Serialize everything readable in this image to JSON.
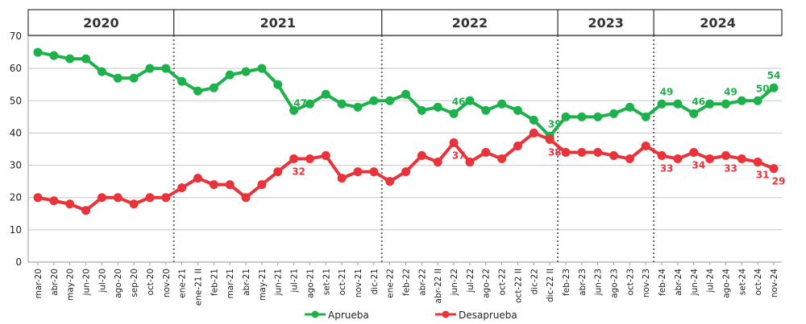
{
  "chart_data": {
    "type": "line",
    "title": "",
    "xlabel": "",
    "ylabel": "",
    "ylim": [
      0,
      70
    ],
    "yticks": [
      0,
      10,
      20,
      30,
      40,
      50,
      60,
      70
    ],
    "grid": true,
    "legend_position": "bottom",
    "year_groups": [
      {
        "label": "2020",
        "count": 9
      },
      {
        "label": "2021",
        "count": 13
      },
      {
        "label": "2022",
        "count": 11
      },
      {
        "label": "2023",
        "count": 6
      },
      {
        "label": "2024",
        "count": 8
      }
    ],
    "categories": [
      "mar-20",
      "abr-20",
      "may-20",
      "jun-20",
      "jul-20",
      "ago-20",
      "sep-20",
      "oct-20",
      "nov-20",
      "ene-21",
      "ene-21 II",
      "feb-21",
      "mar-21",
      "abr-21",
      "may-21",
      "jun-21",
      "jul-21",
      "ago-21",
      "set-21",
      "oct-21",
      "nov-21",
      "dic-21",
      "ene-22",
      "feb-22",
      "abr-22",
      "abr-22 II",
      "jun-22",
      "jul-22",
      "ago-22",
      "oct-22",
      "oct-22 II",
      "dic-22",
      "dic-22 II",
      "feb-23",
      "abr-23",
      "jun-23",
      "ago-23",
      "oct-23",
      "nov-23",
      "feb-24",
      "abr-24",
      "jun-24",
      "jul-24",
      "ago-24",
      "set-24",
      "oct-24",
      "nov-24"
    ],
    "series": [
      {
        "name": "Aprueba",
        "color": "#1db04b",
        "values": [
          65,
          64,
          63,
          63,
          59,
          57,
          57,
          60,
          60,
          56,
          53,
          54,
          58,
          59,
          60,
          55,
          47,
          49,
          52,
          49,
          48,
          50,
          50,
          52,
          47,
          48,
          46,
          50,
          47,
          49,
          47,
          44,
          39,
          45,
          45,
          45,
          46,
          48,
          45,
          49,
          49,
          46,
          49,
          49,
          50,
          50,
          54
        ],
        "labels": [
          {
            "category": "jul-21",
            "text": "47"
          },
          {
            "category": "jun-22",
            "text": "46"
          },
          {
            "category": "dic-22 II",
            "text": "39"
          },
          {
            "category": "feb-24",
            "text": "49"
          },
          {
            "category": "jun-24",
            "text": "46"
          },
          {
            "category": "ago-24",
            "text": "49"
          },
          {
            "category": "oct-24",
            "text": "50"
          },
          {
            "category": "nov-24",
            "text": "54"
          }
        ]
      },
      {
        "name": "Desaprueba",
        "color": "#e8333a",
        "values": [
          20,
          19,
          18,
          16,
          20,
          20,
          18,
          20,
          20,
          23,
          26,
          24,
          24,
          20,
          24,
          28,
          32,
          32,
          33,
          26,
          28,
          28,
          25,
          28,
          33,
          31,
          37,
          31,
          34,
          32,
          36,
          40,
          38,
          34,
          34,
          34,
          33,
          32,
          36,
          33,
          32,
          34,
          32,
          33,
          32,
          31,
          29
        ],
        "labels": [
          {
            "category": "jul-21",
            "text": "32"
          },
          {
            "category": "jun-22",
            "text": "37"
          },
          {
            "category": "dic-22 II",
            "text": "38"
          },
          {
            "category": "feb-24",
            "text": "33"
          },
          {
            "category": "jun-24",
            "text": "34"
          },
          {
            "category": "ago-24",
            "text": "33"
          },
          {
            "category": "oct-24",
            "text": "31"
          },
          {
            "category": "nov-24",
            "text": "29"
          }
        ]
      }
    ]
  }
}
